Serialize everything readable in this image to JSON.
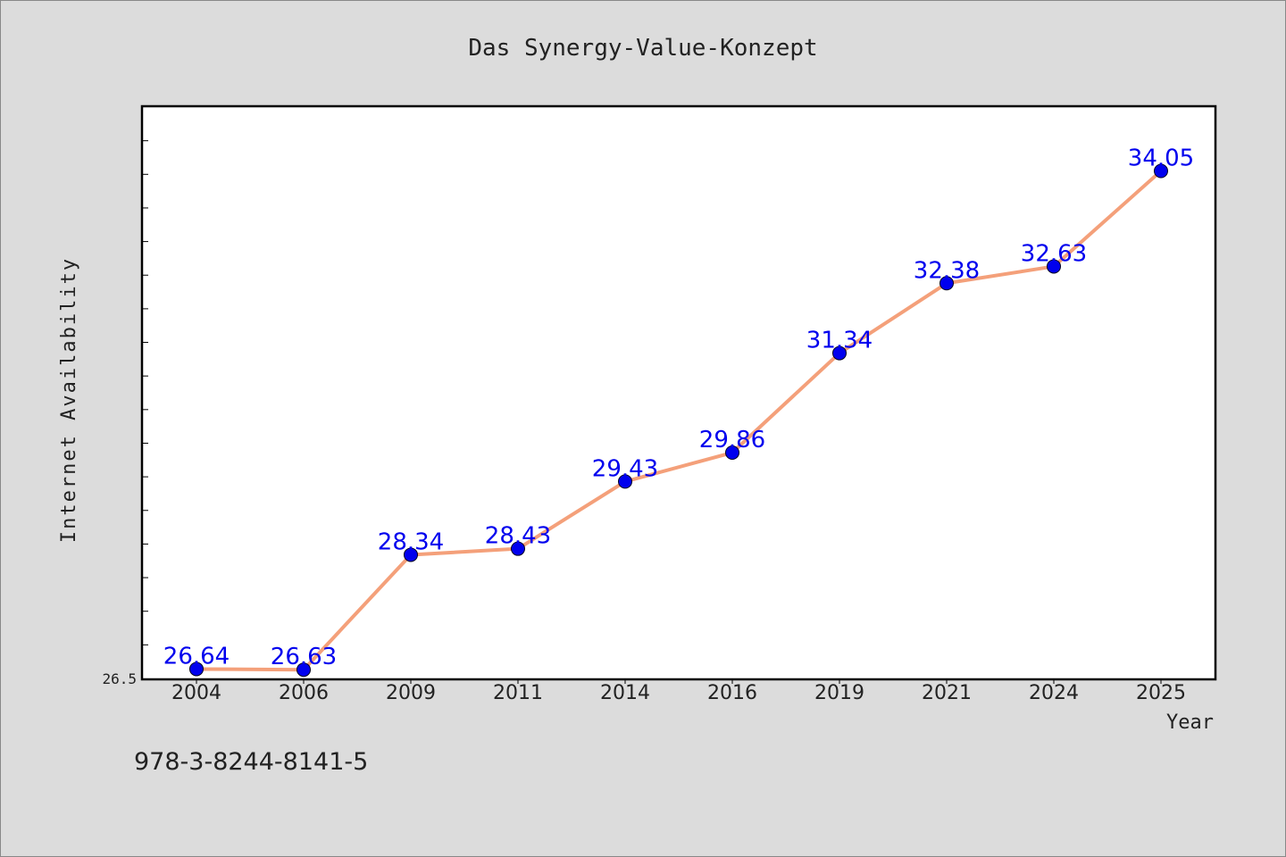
{
  "chart_data": {
    "type": "line",
    "title": "Das Synergy-Value-Konzept",
    "xlabel": "Year",
    "ylabel": "Internet Availability",
    "categories": [
      "2004",
      "2006",
      "2009",
      "2011",
      "2014",
      "2016",
      "2019",
      "2021",
      "2024",
      "2025"
    ],
    "values": [
      26.64,
      26.63,
      28.34,
      28.43,
      29.43,
      29.86,
      31.34,
      32.38,
      32.63,
      34.05
    ],
    "data_labels": [
      "26.64",
      "26.63",
      "28.34",
      "28.43",
      "29.43",
      "29.86",
      "31.34",
      "32.38",
      "32.63",
      "34.05"
    ],
    "ylim": [
      26.5,
      35.0
    ],
    "yticks": [
      "26.5"
    ],
    "grid": false,
    "legend": "none",
    "line_color": "#f4a07a",
    "marker_color": "#0000ee",
    "label_color": "#0000ee",
    "background": "#dcdcdc",
    "plot_background": "#ffffff"
  },
  "annotation": "978-3-8244-8141-5"
}
